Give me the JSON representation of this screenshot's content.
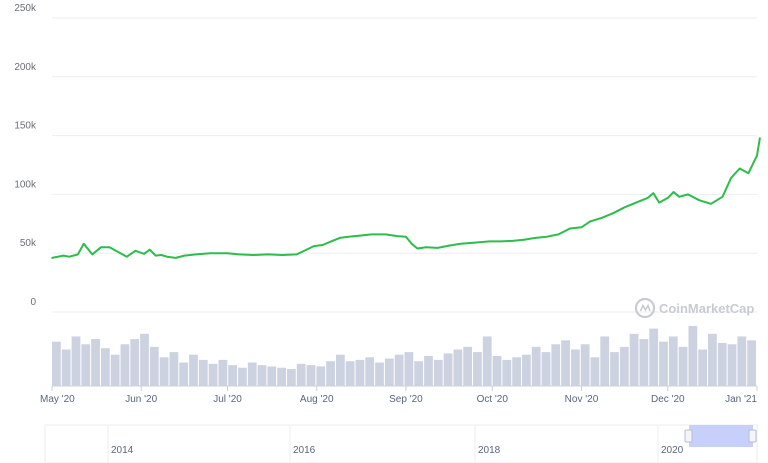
{
  "watermark": "CoinMarketCap",
  "colors": {
    "line": "#2cbd4b",
    "volume": "#cdd2e0",
    "grid": "#eceef2",
    "navigator": "#c6d0fb"
  },
  "chart_data": {
    "type": "line",
    "title": "",
    "xlabel": "",
    "ylabel": "",
    "ylim": [
      0,
      250000
    ],
    "y_ticks": [
      "0",
      "50k",
      "100k",
      "150k",
      "200k",
      "250k"
    ],
    "x_ticks": [
      "May '20",
      "Jun '20",
      "Jul '20",
      "Aug '20",
      "Sep '20",
      "Oct '20",
      "Nov '20",
      "Dec '20",
      "Jan '21"
    ],
    "grid": true,
    "series": [
      {
        "name": "",
        "x": [
          "2020-05-01",
          "2020-05-05",
          "2020-05-07",
          "2020-05-10",
          "2020-05-12",
          "2020-05-15",
          "2020-05-18",
          "2020-05-21",
          "2020-05-24",
          "2020-05-27",
          "2020-05-30",
          "2020-06-02",
          "2020-06-04",
          "2020-06-06",
          "2020-06-08",
          "2020-06-10",
          "2020-06-13",
          "2020-06-16",
          "2020-06-20",
          "2020-06-25",
          "2020-07-01",
          "2020-07-05",
          "2020-07-10",
          "2020-07-15",
          "2020-07-20",
          "2020-07-25",
          "2020-07-31",
          "2020-08-03",
          "2020-08-06",
          "2020-08-09",
          "2020-08-12",
          "2020-08-16",
          "2020-08-20",
          "2020-08-25",
          "2020-08-29",
          "2020-09-01",
          "2020-09-03",
          "2020-09-05",
          "2020-09-08",
          "2020-09-12",
          "2020-09-16",
          "2020-09-20",
          "2020-09-25",
          "2020-09-30",
          "2020-10-04",
          "2020-10-08",
          "2020-10-12",
          "2020-10-16",
          "2020-10-20",
          "2020-10-24",
          "2020-10-28",
          "2020-11-01",
          "2020-11-04",
          "2020-11-08",
          "2020-11-12",
          "2020-11-16",
          "2020-11-20",
          "2020-11-24",
          "2020-11-26",
          "2020-11-28",
          "2020-12-01",
          "2020-12-03",
          "2020-12-05",
          "2020-12-08",
          "2020-12-12",
          "2020-12-16",
          "2020-12-20",
          "2020-12-23",
          "2020-12-26",
          "2020-12-29",
          "2021-01-01",
          "2021-01-02"
        ],
        "values": [
          46000,
          48000,
          47000,
          49000,
          58000,
          49000,
          55000,
          55000,
          51000,
          47000,
          52000,
          49500,
          53000,
          48000,
          48500,
          47000,
          46000,
          48000,
          49000,
          50000,
          50000,
          49000,
          48500,
          49000,
          48500,
          49000,
          56000,
          57000,
          60000,
          63000,
          64000,
          65000,
          66000,
          66000,
          64500,
          64000,
          58000,
          54000,
          55000,
          54500,
          56500,
          58000,
          59000,
          60000,
          60000,
          60500,
          61500,
          63000,
          64000,
          66000,
          71000,
          72000,
          77000,
          80000,
          84000,
          89000,
          93000,
          97000,
          101000,
          93000,
          97000,
          102000,
          98000,
          100000,
          95000,
          92000,
          98000,
          114000,
          122000,
          118000,
          133000,
          148000
        ]
      }
    ],
    "volume": [
      34,
      28,
      38,
      32,
      36,
      29,
      24,
      32,
      36,
      40,
      30,
      22,
      26,
      18,
      24,
      20,
      17,
      20,
      16,
      14,
      18,
      16,
      15,
      14,
      13,
      17,
      16,
      15,
      19,
      24,
      19,
      20,
      22,
      18,
      21,
      24,
      26,
      19,
      23,
      20,
      25,
      28,
      30,
      26,
      38,
      23,
      20,
      22,
      24,
      30,
      26,
      32,
      35,
      28,
      32,
      22,
      38,
      26,
      30,
      40,
      36,
      44,
      34,
      38,
      30,
      46,
      28,
      40,
      33,
      32,
      38,
      35
    ],
    "navigator": {
      "x_ticks": [
        "2014",
        "2016",
        "2018",
        "2020"
      ]
    }
  }
}
